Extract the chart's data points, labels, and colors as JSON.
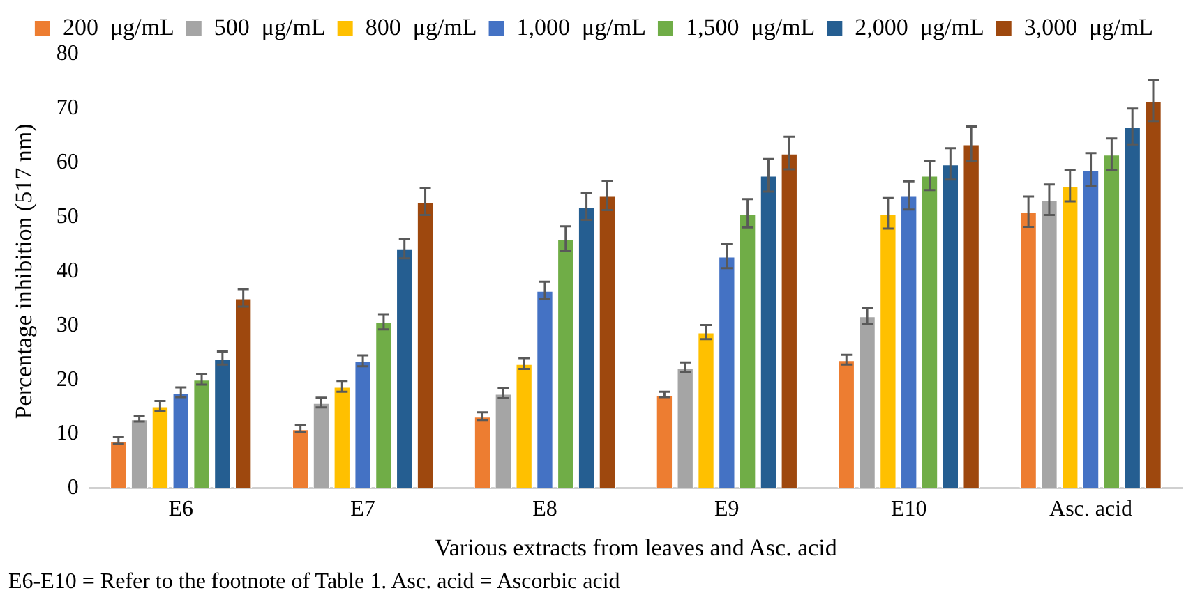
{
  "chart_data": {
    "type": "bar",
    "xlabel": "Various extracts from leaves and Asc. acid",
    "ylabel": "Percentage inhibition (517 nm)",
    "categories": [
      "E6",
      "E7",
      "E8",
      "E9",
      "E10",
      "Asc. acid"
    ],
    "series": [
      {
        "name": "200  μg/mL",
        "color": "#ed7d31",
        "values": [
          8.8,
          11.0,
          13.3,
          17.3,
          23.7,
          51.0
        ],
        "errors": [
          0.6,
          0.6,
          0.7,
          0.5,
          0.9,
          2.8
        ]
      },
      {
        "name": "500  μg/mL",
        "color": "#a5a5a5",
        "values": [
          12.8,
          15.8,
          17.5,
          22.3,
          31.8,
          53.2
        ],
        "errors": [
          0.5,
          0.9,
          0.9,
          0.9,
          1.5,
          2.8
        ]
      },
      {
        "name": "800  μg/mL",
        "color": "#ffc000",
        "values": [
          15.2,
          18.8,
          23.0,
          28.8,
          50.7,
          55.8
        ],
        "errors": [
          0.9,
          1.0,
          1.0,
          1.3,
          2.8,
          2.9
        ]
      },
      {
        "name": "1,000  μg/mL",
        "color": "#4472c4",
        "values": [
          17.7,
          23.5,
          36.5,
          42.8,
          54.0,
          58.8
        ],
        "errors": [
          0.9,
          1.0,
          1.6,
          2.2,
          2.6,
          3.0
        ]
      },
      {
        "name": "1,500  μg/mL",
        "color": "#70ad47",
        "values": [
          20.1,
          30.7,
          46.0,
          50.7,
          57.7,
          61.6
        ],
        "errors": [
          1.0,
          1.4,
          2.3,
          2.6,
          2.7,
          2.9
        ]
      },
      {
        "name": "2,000  μg/mL",
        "color": "#255e91",
        "values": [
          24.0,
          44.2,
          52.0,
          57.7,
          59.8,
          66.7
        ],
        "errors": [
          1.2,
          1.8,
          2.5,
          3.0,
          2.9,
          3.3
        ]
      },
      {
        "name": "3,000  μg/mL",
        "color": "#9e480e",
        "values": [
          35.1,
          52.9,
          54.0,
          61.8,
          63.5,
          71.5
        ],
        "errors": [
          1.6,
          2.5,
          2.7,
          3.0,
          3.2,
          3.8
        ]
      }
    ],
    "ylim": [
      0,
      80
    ],
    "yticks": [
      0,
      10,
      20,
      30,
      40,
      50,
      60,
      70,
      80
    ],
    "grid": false,
    "legend": "top",
    "annotations": [
      "E6-E10 = Refer to the footnote of Table 1. Asc. acid = Ascorbic acid"
    ]
  }
}
